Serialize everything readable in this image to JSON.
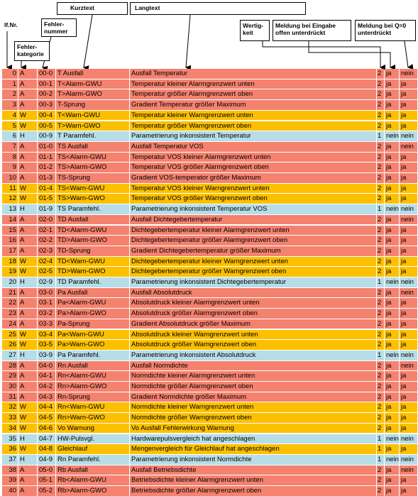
{
  "header": {
    "lfnr": "lf.Nr.",
    "kategorie": "Fehler-\nkategorie",
    "nummer": "Fehler-\nnummer",
    "kurztext": "Kurztext",
    "langtext": "Langtext",
    "wertigkeit": "Wertig-\nkeit",
    "eingabe": "Meldung bei Eingabe\noffen unterdrückt",
    "q0": "Meldung bei Q=0\nunterdrückt"
  },
  "colors": {
    "A": "#f4826f",
    "W": "#fcc000",
    "H": "#b7dde8"
  },
  "table": {
    "rows": [
      [
        0,
        "A",
        "00-0",
        "T Ausfall",
        "Ausfall Temperatur",
        2,
        "ja",
        "nein"
      ],
      [
        1,
        "A",
        "00-1",
        "T<Alarm-GWU",
        "Temperatur kleiner Alarmgrenzwert unten",
        2,
        "ja",
        "ja"
      ],
      [
        2,
        "A",
        "00-2",
        "T>Alarm-GWO",
        "Temperatur größer Alarmgrenzwert oben",
        2,
        "ja",
        "ja"
      ],
      [
        3,
        "A",
        "00-3",
        "T-Sprung",
        "Gradient Temperatur größer Maximum",
        2,
        "ja",
        "ja"
      ],
      [
        4,
        "W",
        "00-4",
        "T<Warn-GWU",
        "Temperatur kleiner Warngrenzwert unten",
        2,
        "ja",
        "ja"
      ],
      [
        5,
        "W",
        "00-5",
        "T>Warn-GWO",
        "Temperatur größer Warngrenzwert oben",
        2,
        "ja",
        "ja"
      ],
      [
        6,
        "H",
        "00-9",
        "T Paramfehl.",
        "Parametrierung inkonsistent Temperatur",
        1,
        "nein",
        "nein"
      ],
      [
        7,
        "A",
        "01-0",
        "TS Ausfall",
        "Ausfall Temperatur VOS",
        2,
        "ja",
        "nein"
      ],
      [
        8,
        "A",
        "01-1",
        "TS<Alarm-GWU",
        "Temperatur VOS kleiner Alarmgrenzwert unten",
        2,
        "ja",
        "ja"
      ],
      [
        9,
        "A",
        "01-2",
        "TS>Alarm-GWO",
        "Temperatur VOS größer Alarmgrenzwert oben",
        2,
        "ja",
        "ja"
      ],
      [
        10,
        "A",
        "01-3",
        "TS-Sprung",
        "Gradient VOS-temperator größer Maximum",
        2,
        "ja",
        "ja"
      ],
      [
        11,
        "W",
        "01-4",
        "TS<Warn-GWU",
        "Temperatur VOS kleiner Warngrenzwert unten",
        2,
        "ja",
        "ja"
      ],
      [
        12,
        "W",
        "01-5",
        "TS>Warn-GWO",
        "Temperatur VOS größer Warngrenzwert oben",
        2,
        "ja",
        "ja"
      ],
      [
        13,
        "H",
        "01-9",
        "TS Paramfehl.",
        "Parametrierung inkonsistent Temperatur VOS",
        1,
        "nein",
        "nein"
      ],
      [
        14,
        "A",
        "02-0",
        "TD Ausfall",
        "Ausfall Dichtegebertemperatur",
        2,
        "ja",
        "nein"
      ],
      [
        15,
        "A",
        "02-1",
        "TD<Alarm-GWU",
        "Dichtegebertemperatur kleiner Alarmgrenzwert unten",
        2,
        "ja",
        "ja"
      ],
      [
        16,
        "A",
        "02-2",
        "TD>Alarm-GWO",
        "Dichtegebertemperatur größer Alarmgrenzwert oben",
        2,
        "ja",
        "ja"
      ],
      [
        17,
        "A",
        "02-3",
        "TD-Sprung",
        "Gradient Dichtegebertemperatur größer Maximum",
        2,
        "ja",
        "ja"
      ],
      [
        18,
        "W",
        "02-4",
        "TD<Warn-GWU",
        "Dichtegebertemperatur kleiner Warngrenzwert unten",
        2,
        "ja",
        "ja"
      ],
      [
        19,
        "W",
        "02-5",
        "TD>Warn-GWO",
        "Dichtegebertemperatur größer Warngrenzwert oben",
        2,
        "ja",
        "ja"
      ],
      [
        20,
        "H",
        "02-9",
        "TD Paramfehl.",
        "Parametrierung inkonsistent Dichtegebertemperatur",
        1,
        "nein",
        "nein"
      ],
      [
        21,
        "A",
        "03-0",
        "Pa Ausfall",
        "Ausfall Absolutdruck",
        2,
        "ja",
        "nein"
      ],
      [
        22,
        "A",
        "03-1",
        "Pa<Alarm-GWU",
        "Absolutdruck kleiner Alarmgrenzwert unten",
        2,
        "ja",
        "ja"
      ],
      [
        23,
        "A",
        "03-2",
        "Pa>Alarm-GWO",
        "Absolutdruck größer Alarmgrenzwert oben",
        2,
        "ja",
        "ja"
      ],
      [
        24,
        "A",
        "03-3",
        "Pa-Sprung",
        "Gradient Absolutdruck größer Maximum",
        2,
        "ja",
        "ja"
      ],
      [
        25,
        "W",
        "03-4",
        "Pa<Warn-GWU",
        "Absolutdruck kleiner Warngrenzwert unten",
        2,
        "ja",
        "ja"
      ],
      [
        26,
        "W",
        "03-5",
        "Pa>Warn-GWO",
        "Absolutdruck größer Warngrenzwert oben",
        2,
        "ja",
        "ja"
      ],
      [
        27,
        "H",
        "03-9",
        "Pa Paramfehl.",
        "Parametrierung inkonsistent Absolutdruck",
        1,
        "nein",
        "nein"
      ],
      [
        28,
        "A",
        "04-0",
        "Rn Ausfall",
        "Ausfall Normdichte",
        2,
        "ja",
        "nein"
      ],
      [
        29,
        "A",
        "04-1",
        "Rn<Alarm-GWU",
        "Normdichte kleiner Alarmgrenzwert unten",
        2,
        "ja",
        "ja"
      ],
      [
        30,
        "A",
        "04-2",
        "Rn>Alarm-GWO",
        "Normdichte größer Alarmgrenzwert oben",
        2,
        "ja",
        "ja"
      ],
      [
        31,
        "A",
        "04-3",
        "Rn-Sprung",
        "Gradient Normdichte größer Maximum",
        2,
        "ja",
        "ja"
      ],
      [
        32,
        "W",
        "04-4",
        "Rn<Warn-GWU",
        "Normdichte kleiner Warngrenzwert unten",
        2,
        "ja",
        "ja"
      ],
      [
        33,
        "W",
        "04-5",
        "Rn>Warn-GWO",
        "Normdichte größer Warngrenzwert oben",
        2,
        "ja",
        "ja"
      ],
      [
        34,
        "W",
        "04-6",
        "Vo Warnung",
        "Vo Ausfall Fehlerwirkung Warnung",
        2,
        "ja",
        "ja"
      ],
      [
        35,
        "H",
        "04-7",
        "HW-Pulsvgl.",
        "Hardwarepulsvergleich hat angeschlagen",
        1,
        "nein",
        "nein"
      ],
      [
        36,
        "W",
        "04-8",
        "Gleichlauf",
        "Mengenvergleich für Gleichlauf hat angeschlagen",
        1,
        "ja",
        "ja"
      ],
      [
        37,
        "H",
        "04-9",
        "Rn Paramfehl.",
        "Parametrierung inkonsistent Normdichte",
        1,
        "nein",
        "nein"
      ],
      [
        38,
        "A",
        "05-0",
        "Rb Ausfall",
        "Ausfall Betriebsdichte",
        2,
        "ja",
        "nein"
      ],
      [
        39,
        "A",
        "05-1",
        "Rb<Alarm-GWU",
        "Betriebsdichte kleiner Alarmgrenzwert unten",
        2,
        "ja",
        "ja"
      ],
      [
        40,
        "A",
        "05-2",
        "Rb>Alarm-GWO",
        "Betriebsdichte größer Alarmgrenzwert oben",
        2,
        "ja",
        "ja"
      ]
    ]
  }
}
